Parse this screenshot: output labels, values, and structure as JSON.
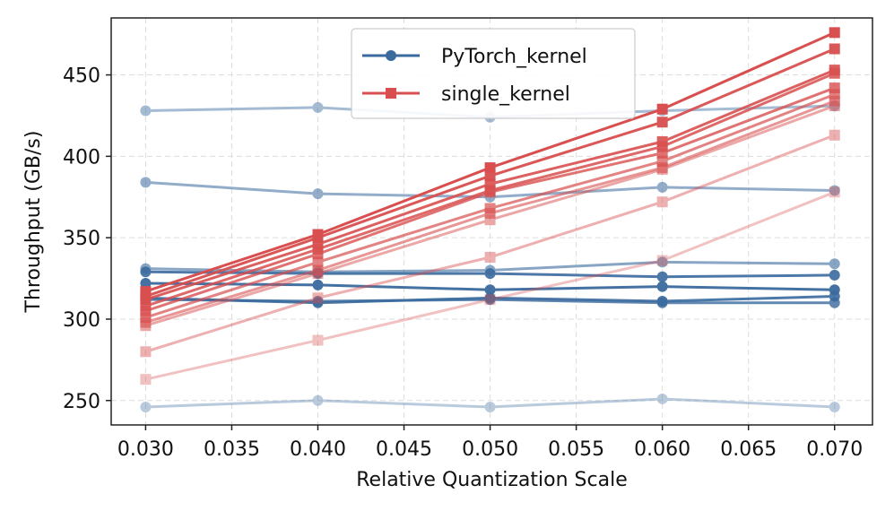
{
  "chart_data": {
    "type": "line",
    "title": "",
    "xlabel": "Relative Quantization Scale",
    "ylabel": "Throughput (GB/s)",
    "x": [
      0.03,
      0.04,
      0.05,
      0.06,
      0.07
    ],
    "xlim": [
      0.028,
      0.0722
    ],
    "ylim": [
      235,
      485
    ],
    "xticks": [
      "0.030",
      "0.035",
      "0.040",
      "0.045",
      "0.050",
      "0.055",
      "0.060",
      "0.065",
      "0.070"
    ],
    "yticks": [
      "250",
      "300",
      "350",
      "400",
      "450"
    ],
    "grid": true,
    "legend_position": "top-center",
    "legend": [
      {
        "name": "PyTorch_kernel",
        "color": "#3a6a9e",
        "marker": "circle"
      },
      {
        "name": "single_kernel",
        "color": "#d94f4f",
        "marker": "square"
      }
    ],
    "series": [
      {
        "name": "PyTorch_kernel",
        "opacity": 0.45,
        "values": [
          428,
          430,
          424,
          428,
          431
        ]
      },
      {
        "name": "PyTorch_kernel",
        "opacity": 0.55,
        "values": [
          384,
          377,
          375,
          381,
          379
        ]
      },
      {
        "name": "PyTorch_kernel",
        "opacity": 0.6,
        "values": [
          331,
          329,
          330,
          335,
          334
        ]
      },
      {
        "name": "PyTorch_kernel",
        "opacity": 0.9,
        "values": [
          329,
          328,
          328,
          326,
          327
        ]
      },
      {
        "name": "PyTorch_kernel",
        "opacity": 0.95,
        "values": [
          322,
          321,
          318,
          320,
          318
        ]
      },
      {
        "name": "PyTorch_kernel",
        "opacity": 0.9,
        "values": [
          313,
          310,
          313,
          311,
          314
        ]
      },
      {
        "name": "PyTorch_kernel",
        "opacity": 0.8,
        "values": [
          312,
          311,
          312,
          310,
          310
        ]
      },
      {
        "name": "PyTorch_kernel",
        "opacity": 0.35,
        "values": [
          246,
          250,
          246,
          251,
          246
        ]
      },
      {
        "name": "single_kernel",
        "opacity": 1.0,
        "values": [
          317,
          352,
          393,
          429,
          476
        ]
      },
      {
        "name": "single_kernel",
        "opacity": 0.95,
        "values": [
          314,
          350,
          388,
          421,
          466
        ]
      },
      {
        "name": "single_kernel",
        "opacity": 0.9,
        "values": [
          312,
          346,
          383,
          409,
          453
        ]
      },
      {
        "name": "single_kernel",
        "opacity": 0.85,
        "values": [
          308,
          343,
          379,
          406,
          451
        ]
      },
      {
        "name": "single_kernel",
        "opacity": 0.8,
        "values": [
          305,
          340,
          378,
          402,
          442
        ]
      },
      {
        "name": "single_kernel",
        "opacity": 0.7,
        "values": [
          301,
          335,
          368,
          397,
          438
        ]
      },
      {
        "name": "single_kernel",
        "opacity": 0.6,
        "values": [
          298,
          330,
          365,
          393,
          434
        ]
      },
      {
        "name": "single_kernel",
        "opacity": 0.5,
        "values": [
          296,
          328,
          361,
          392,
          431
        ]
      },
      {
        "name": "single_kernel",
        "opacity": 0.45,
        "values": [
          280,
          313,
          338,
          372,
          413
        ]
      },
      {
        "name": "single_kernel",
        "opacity": 0.35,
        "values": [
          263,
          287,
          312,
          336,
          378
        ]
      }
    ]
  }
}
